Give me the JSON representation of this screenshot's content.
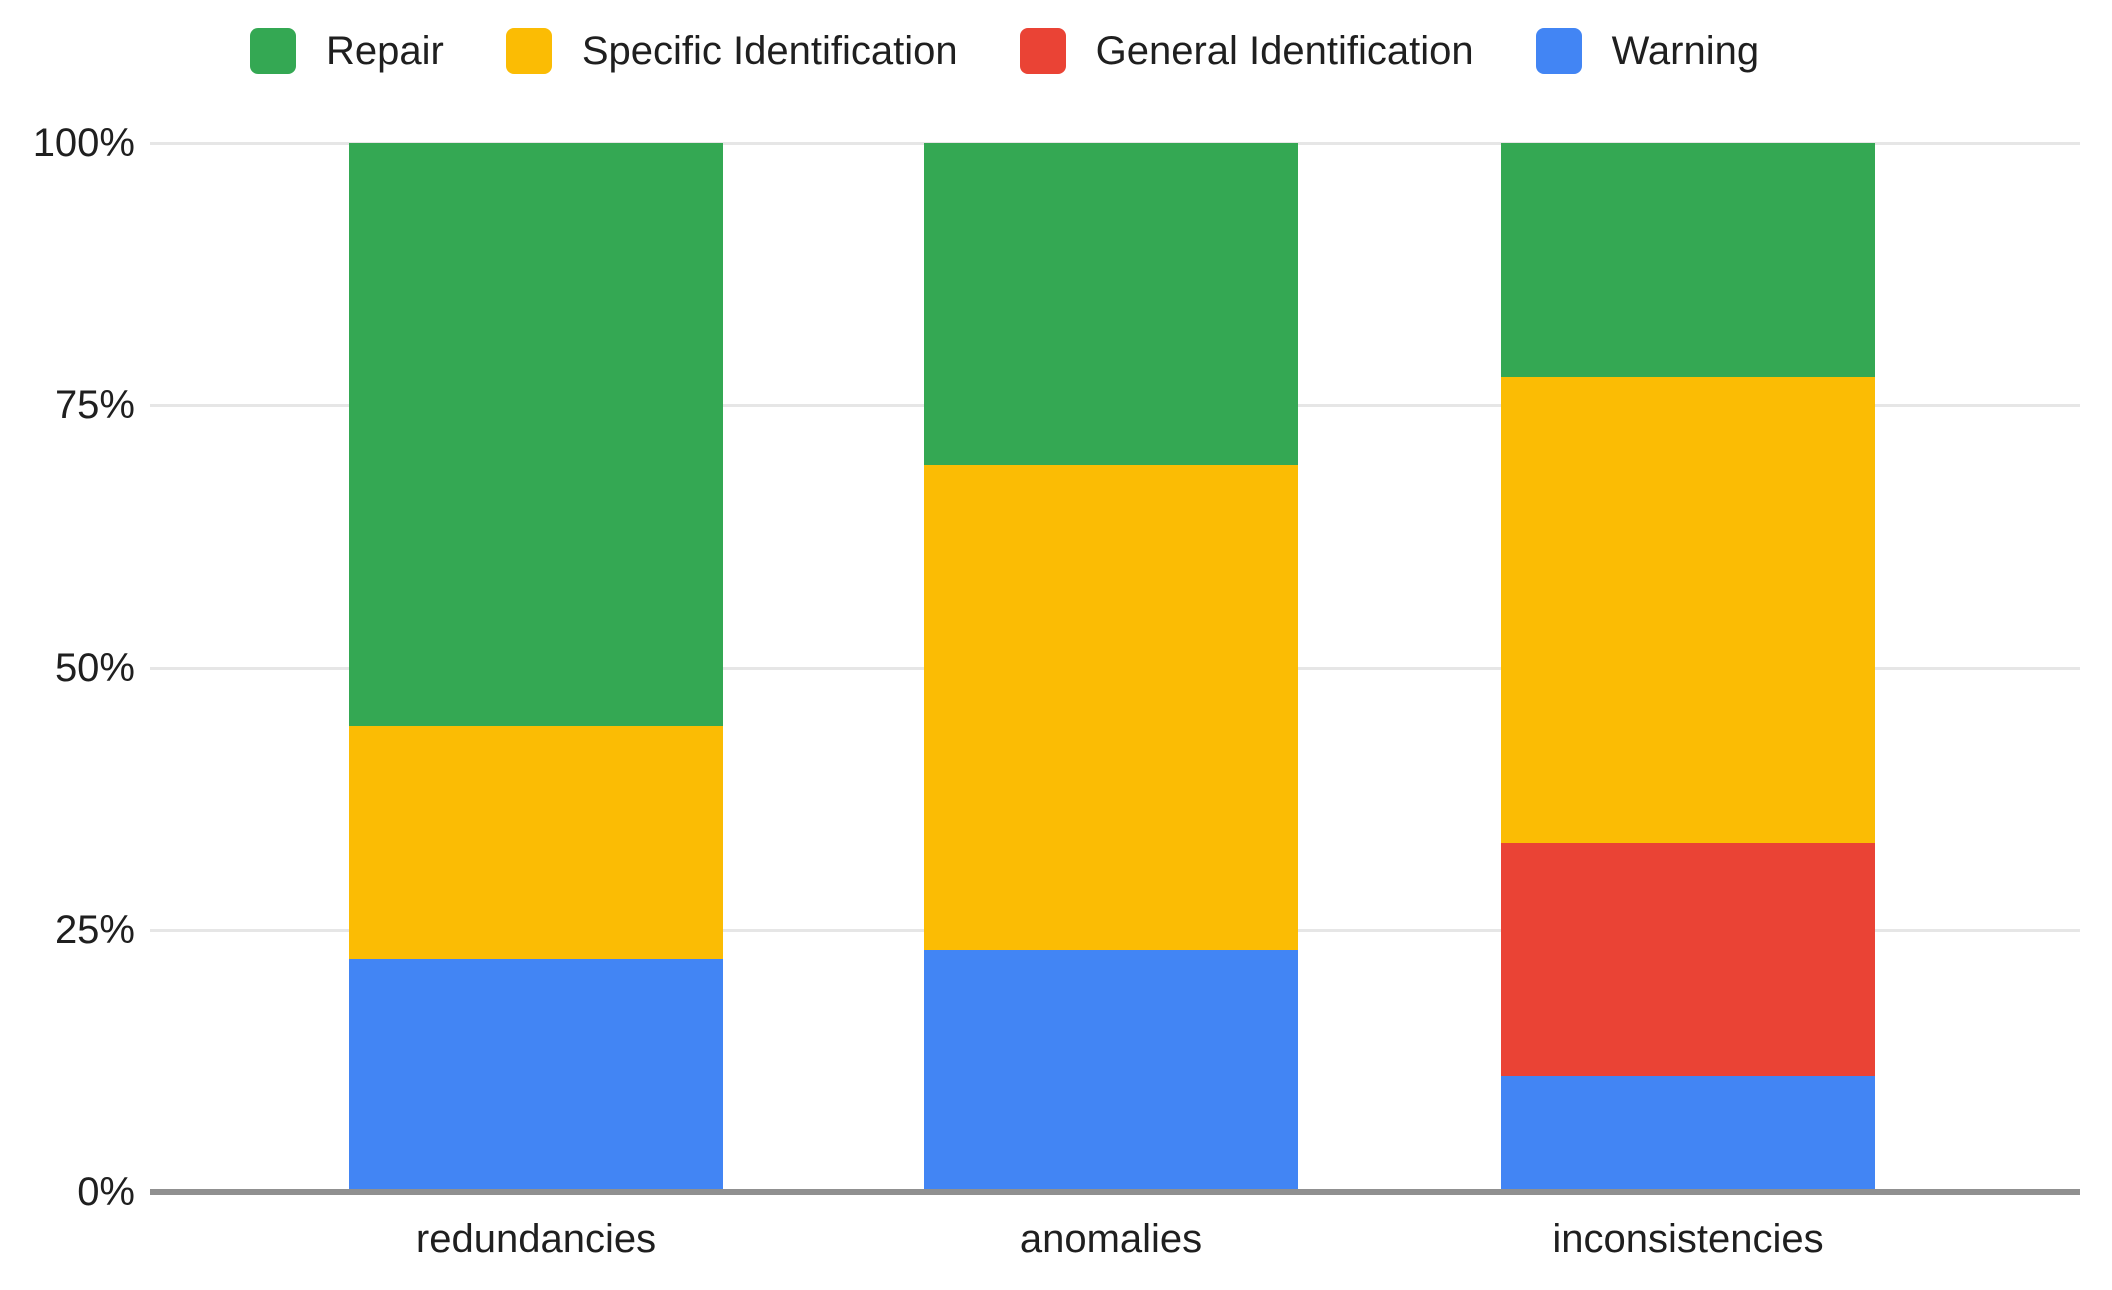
{
  "chart_data": {
    "type": "bar",
    "subtype": "stacked-100-percent",
    "title": "",
    "categories": [
      "redundancies",
      "anomalies",
      "inconsistencies"
    ],
    "series": [
      {
        "name": "Warning",
        "color": "#4285F4",
        "values": [
          22.2,
          23.1,
          11.1
        ]
      },
      {
        "name": "General Identification",
        "color": "#EA4335",
        "values": [
          0,
          0,
          22.2
        ]
      },
      {
        "name": "Specific Identification",
        "color": "#FBBC04",
        "values": [
          22.2,
          46.2,
          44.4
        ]
      },
      {
        "name": "Repair",
        "color": "#34A853",
        "values": [
          55.6,
          30.7,
          22.3
        ]
      }
    ],
    "stack_order_bottom_to_top": [
      "Warning",
      "General Identification",
      "Specific Identification",
      "Repair"
    ],
    "legend": {
      "position": "top",
      "entries": [
        "Repair",
        "Specific Identification",
        "General Identification",
        "Warning"
      ]
    },
    "y_axis": {
      "ticks": [
        "0%",
        "25%",
        "50%",
        "75%",
        "100%"
      ],
      "range": [
        0,
        100
      ],
      "grid": true
    },
    "x_axis": {
      "labels": [
        "redundancies",
        "anomalies",
        "inconsistencies"
      ]
    }
  },
  "colors": {
    "background": "#FFFFFF",
    "gridline": "#E6E6E6",
    "baseline": "#909090",
    "text": "#1F1F1F"
  }
}
